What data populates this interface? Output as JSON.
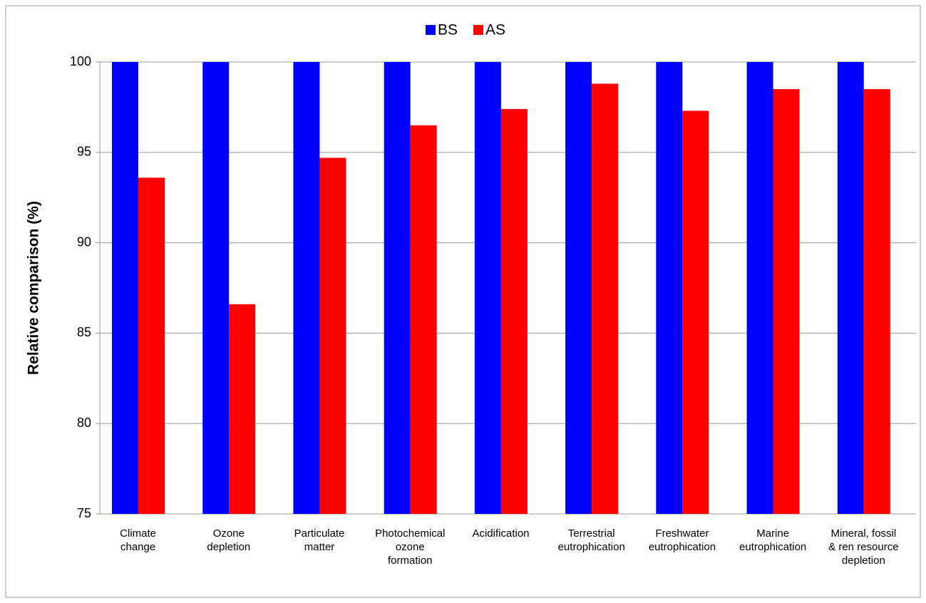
{
  "chart_data": {
    "type": "bar",
    "ylabel": "Relative comparison (%)",
    "categories": [
      "Climate\nchange",
      "Ozone\ndepletion",
      "Particulate\nmatter",
      "Photochemical\nozone\nformation",
      "Acidification",
      "Terrestrial\neutrophication",
      "Freshwater\neutrophication",
      "Marine\neutrophication",
      "Mineral, fossil\n& ren resource\ndepletion"
    ],
    "series": [
      {
        "name": "BS",
        "color": "#0000ff",
        "values": [
          100,
          100,
          100,
          100,
          100,
          100,
          100,
          100,
          100
        ]
      },
      {
        "name": "AS",
        "color": "#ff0000",
        "values": [
          93.6,
          86.6,
          94.7,
          96.5,
          97.4,
          98.8,
          97.3,
          98.5,
          98.5
        ]
      }
    ],
    "ylim": [
      75,
      100
    ],
    "yticks": [
      75,
      80,
      85,
      90,
      95,
      100
    ],
    "grid": true,
    "legend": "top"
  }
}
